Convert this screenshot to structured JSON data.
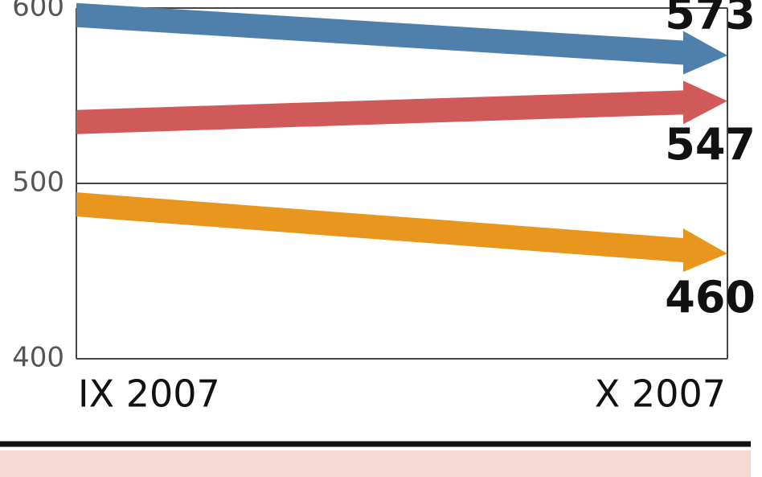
{
  "chart_data": {
    "type": "arrow",
    "categories": [
      "IX 2007",
      "X 2007"
    ],
    "series": [
      {
        "color": "#4f80ab",
        "values": [
          596,
          573
        ]
      },
      {
        "color": "#d05a5a",
        "values": [
          535,
          547
        ]
      },
      {
        "color": "#e8961e",
        "values": [
          488,
          460
        ]
      }
    ],
    "ylim": [
      400,
      600
    ],
    "yticks": [
      400,
      500,
      600
    ],
    "grid": true
  }
}
